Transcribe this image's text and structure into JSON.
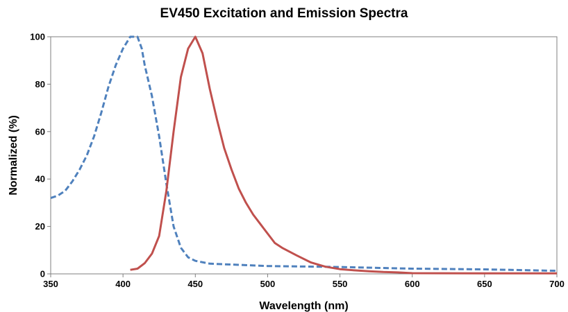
{
  "chart_data": {
    "type": "line",
    "title": "EV450 Excitation and Emission Spectra",
    "xlabel": "Wavelength (nm)",
    "ylabel": "Normalized (%)",
    "xlim": [
      350,
      700
    ],
    "ylim": [
      0,
      100
    ],
    "xticks": [
      350,
      400,
      450,
      500,
      550,
      600,
      650,
      700
    ],
    "yticks": [
      0,
      20,
      40,
      60,
      80,
      100
    ],
    "grid": false,
    "legend": "none",
    "series": [
      {
        "color": "#4F81BD",
        "dash": "dashed",
        "x": [
          350,
          355,
          360,
          365,
          370,
          375,
          380,
          385,
          390,
          395,
          400,
          405,
          410,
          413,
          415,
          420,
          425,
          430,
          435,
          440,
          445,
          450,
          460,
          480,
          500,
          550,
          600,
          650,
          700
        ],
        "y": [
          32,
          33,
          35,
          39,
          44,
          50,
          58,
          68,
          79,
          88,
          95,
          100,
          100,
          95,
          88,
          75,
          58,
          38,
          20,
          11,
          7,
          5.5,
          4.3,
          3.8,
          3.3,
          2.9,
          2.2,
          1.9,
          1.3
        ]
      },
      {
        "color": "#C0504D",
        "dash": "solid",
        "x": [
          405,
          410,
          415,
          420,
          425,
          430,
          435,
          440,
          445,
          450,
          455,
          460,
          465,
          470,
          475,
          480,
          485,
          490,
          495,
          500,
          505,
          510,
          520,
          530,
          540,
          550,
          560,
          570,
          580,
          590,
          600,
          650,
          700
        ],
        "y": [
          1.7,
          2.2,
          4.5,
          8.5,
          16,
          35,
          60,
          83,
          95,
          100,
          93,
          78,
          65,
          53,
          44,
          36,
          30,
          25,
          21,
          17,
          13,
          11,
          7.8,
          4.8,
          3,
          2,
          1.5,
          1.1,
          0.8,
          0.6,
          0.3,
          0.2,
          0.2
        ]
      }
    ]
  }
}
